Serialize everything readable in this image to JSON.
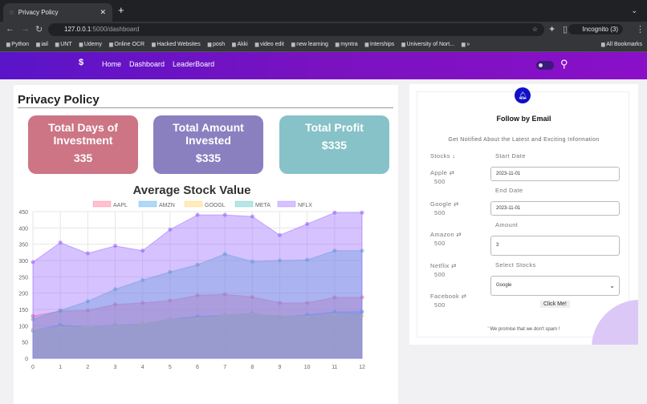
{
  "browser": {
    "tab_title": "Privacy Policy",
    "url_host": "127.0.0.1",
    "url_path": ":5000/dashboard",
    "profile": "Incognito (3)",
    "bookmarks": [
      "Python",
      "iail",
      "UNT",
      "Udemy",
      "Online OCR",
      "Hacked Websites",
      "posh",
      "Akki",
      "video edit",
      "new learning",
      "myntra",
      "Interships",
      "University of Nort...",
      "»",
      "All Bookmarks"
    ]
  },
  "nav": {
    "logo": "$",
    "links": [
      "Home",
      "Dashboard",
      "LeaderBoard"
    ]
  },
  "page": {
    "title": "Privacy Policy",
    "stats": [
      {
        "label": "Total Days of Investment",
        "value": "335",
        "color": "#cd7585"
      },
      {
        "label": "Total Amount Invested",
        "value": "$335",
        "color": "#8a80c0"
      },
      {
        "label": "Total Profit",
        "value": "$335",
        "color": "#86c2c8"
      }
    ]
  },
  "chart_data": {
    "type": "area",
    "title": "Average Stock Value",
    "x": [
      0,
      1,
      2,
      3,
      4,
      5,
      6,
      7,
      8,
      9,
      10,
      11,
      12
    ],
    "ylim": [
      0,
      450
    ],
    "yticks": [
      0,
      50,
      100,
      150,
      200,
      250,
      300,
      350,
      400,
      450
    ],
    "grid": true,
    "legend": "top",
    "series": [
      {
        "name": "AAPL",
        "color": "#ff6384",
        "values": [
          130,
          145,
          147,
          165,
          170,
          177,
          193,
          196,
          188,
          170,
          170,
          187,
          187
        ]
      },
      {
        "name": "AMZN",
        "color": "#36a2eb",
        "values": [
          85,
          102,
          95,
          102,
          105,
          120,
          128,
          133,
          138,
          128,
          133,
          142,
          143
        ]
      },
      {
        "name": "GOOGL",
        "color": "#ffcd56",
        "values": [
          88,
          95,
          95,
          100,
          105,
          120,
          122,
          133,
          137,
          131,
          128,
          135,
          130
        ]
      },
      {
        "name": "META",
        "color": "#4bc0c0",
        "values": [
          120,
          147,
          175,
          212,
          240,
          265,
          287,
          320,
          297,
          300,
          302,
          330,
          330
        ]
      },
      {
        "name": "NFLX",
        "color": "#9966ff",
        "values": [
          295,
          355,
          322,
          345,
          330,
          395,
          440,
          440,
          435,
          378,
          412,
          447,
          447
        ]
      }
    ]
  },
  "follow": {
    "title": "Follow by Email",
    "subtitle": "Get Notified About the Latest and Exciting Information",
    "stocks_header": "Stocks ↓",
    "stocks": [
      {
        "name": "Apple ⇄",
        "value": "500"
      },
      {
        "name": "Google ⇄",
        "value": "500"
      },
      {
        "name": "Amazon ⇄",
        "value": "500"
      },
      {
        "name": "Netflix ⇄",
        "value": "500"
      },
      {
        "name": "Facebook ⇄",
        "value": "500"
      }
    ],
    "start_label": "Start Date",
    "start_value": "2023-11-01",
    "end_label": "End Date",
    "end_value": "2023-11-01",
    "amount_label": "Amount",
    "amount_value": "3",
    "select_label": "Select Stocks",
    "select_value": "Google",
    "button": "Click Me!",
    "promise": "' We promise that we don't spam !"
  }
}
